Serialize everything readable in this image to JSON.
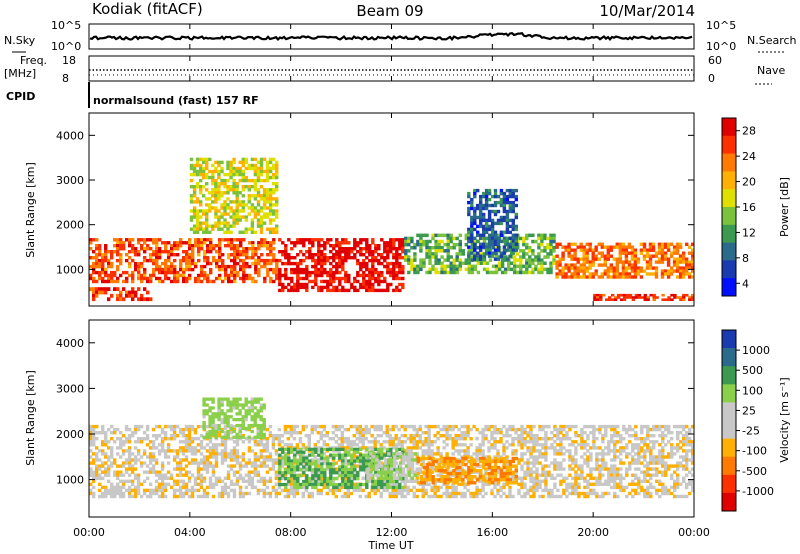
{
  "header": {
    "radar": "Kodiak (fitACF)",
    "beam": "Beam 09",
    "date": "10/Mar/2014"
  },
  "strips": {
    "nsky_label": "N.Sky",
    "nsearch_label": "N.Search",
    "nsky_ticks": [
      "10^5",
      "10^0"
    ],
    "nsearch_ticks": [
      "10^5",
      "10^0"
    ],
    "freq_label": "Freq.",
    "freq_unit": "[MHz]",
    "freq_ticks": [
      "18",
      "8"
    ],
    "nave_label": "Nave",
    "nave_ticks": [
      "60",
      "0"
    ],
    "cpid_label": "CPID",
    "cpid_text": "normalsound (fast) 157 RF"
  },
  "x_axis": {
    "label": "Time UT",
    "ticks": [
      "00:00",
      "04:00",
      "08:00",
      "12:00",
      "16:00",
      "20:00",
      "00:00"
    ]
  },
  "panels": {
    "power_ylabel": "Slant Range [km]",
    "velocity_ylabel": "Slant Range [km]",
    "y_ticks": [
      "4000",
      "3000",
      "2000",
      "1000"
    ]
  },
  "colorbars": {
    "power": {
      "label": "Power [dB]",
      "ticks": [
        "28",
        "24",
        "20",
        "16",
        "12",
        "8",
        "4"
      ],
      "colors": [
        "#e00000",
        "#ff3000",
        "#ff7a00",
        "#ffb000",
        "#e0e000",
        "#7ac23c",
        "#3c9a50",
        "#2a6a8a",
        "#1a3ab0",
        "#0010ff"
      ]
    },
    "velocity": {
      "label": "Velocity [m s⁻¹]",
      "ticks": [
        "1000",
        "500",
        "100",
        "25",
        "-25",
        "-100",
        "-500",
        "-1000"
      ],
      "colors": [
        "#1a3ab0",
        "#2a6a8a",
        "#3c9a50",
        "#8ad04a",
        "#c8c8c8",
        "#c8c8c8",
        "#ffb000",
        "#ff7a00",
        "#ff3000",
        "#e00000"
      ]
    }
  },
  "chart_data": [
    {
      "type": "heatmap",
      "title": "Power",
      "xlabel": "Time UT",
      "ylabel": "Slant Range [km]",
      "xlim": [
        0,
        24
      ],
      "ylim": [
        180,
        4500
      ],
      "colorbar_label": "Power [dB]",
      "colorbar_range": [
        0,
        30
      ],
      "regions": [
        {
          "t": [
            0,
            7.5
          ],
          "r": [
            700,
            1700
          ],
          "value": 26
        },
        {
          "t": [
            0,
            2.5
          ],
          "r": [
            300,
            600
          ],
          "value": 28
        },
        {
          "t": [
            7.5,
            12.5
          ],
          "r": [
            500,
            1700
          ],
          "value": 30
        },
        {
          "t": [
            12.5,
            18.5
          ],
          "r": [
            900,
            1800
          ],
          "value": 14
        },
        {
          "t": [
            18.5,
            24
          ],
          "r": [
            800,
            1600
          ],
          "value": 24
        },
        {
          "t": [
            20,
            24
          ],
          "r": [
            300,
            450
          ],
          "value": 28
        },
        {
          "t": [
            4,
            7.5
          ],
          "r": [
            1800,
            3500
          ],
          "value": 18
        },
        {
          "t": [
            15,
            17
          ],
          "r": [
            1200,
            2800
          ],
          "value": 8
        }
      ]
    },
    {
      "type": "heatmap",
      "title": "Velocity",
      "xlabel": "Time UT",
      "ylabel": "Slant Range [km]",
      "xlim": [
        0,
        24
      ],
      "ylim": [
        180,
        4500
      ],
      "colorbar_label": "Velocity [m s⁻¹]",
      "colorbar_range": [
        -1000,
        1000
      ],
      "regions": [
        {
          "t": [
            0,
            24
          ],
          "r": [
            600,
            2200
          ],
          "value": 0
        },
        {
          "t": [
            7.5,
            12.5
          ],
          "r": [
            800,
            1700
          ],
          "value": 250
        },
        {
          "t": [
            4.5,
            7
          ],
          "r": [
            1900,
            2800
          ],
          "value": 150
        },
        {
          "t": [
            11,
            13
          ],
          "r": [
            1000,
            1600
          ],
          "value": 100
        },
        {
          "t": [
            13,
            17
          ],
          "r": [
            900,
            1500
          ],
          "value": -100
        }
      ]
    }
  ]
}
